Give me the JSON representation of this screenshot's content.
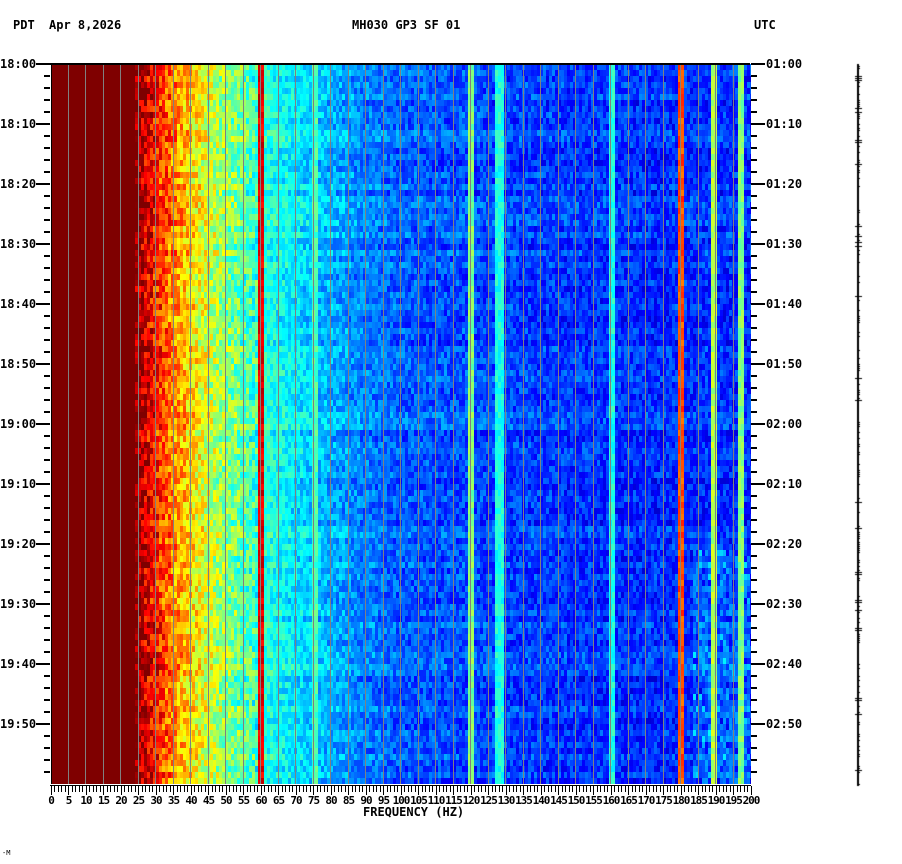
{
  "header": {
    "left_tz": "PDT",
    "date": "Apr 8,2026",
    "station": "MH030 GP3 SF 01",
    "right_tz": "UTC"
  },
  "footer": {
    "corner_mark": "-M"
  },
  "colors": {
    "background": "#ffffff",
    "grid": "#808080",
    "axis": "#000000",
    "colormap": [
      "#00007f",
      "#0000ff",
      "#0080ff",
      "#00ffff",
      "#80ff80",
      "#ffff00",
      "#ff8000",
      "#ff0000",
      "#7f0000"
    ]
  },
  "chart_data": {
    "type": "heatmap",
    "title": "MH030 GP3 SF 01",
    "subtitle": "Apr 8,2026",
    "xlabel": "FREQUENCY (HZ)",
    "ylabel_left": "PDT",
    "ylabel_right": "UTC",
    "xlim": [
      0,
      200
    ],
    "x_ticks": [
      0,
      5,
      10,
      15,
      20,
      25,
      30,
      35,
      40,
      45,
      50,
      55,
      60,
      65,
      70,
      75,
      80,
      85,
      90,
      95,
      100,
      105,
      110,
      115,
      120,
      125,
      130,
      135,
      140,
      145,
      150,
      155,
      160,
      165,
      170,
      175,
      180,
      185,
      190,
      195,
      200
    ],
    "y_ticks_left": [
      "18:00",
      "18:10",
      "18:20",
      "18:30",
      "18:40",
      "18:50",
      "19:00",
      "19:10",
      "19:20",
      "19:30",
      "19:40",
      "19:50"
    ],
    "y_ticks_right": [
      "01:00",
      "01:10",
      "01:20",
      "01:30",
      "01:40",
      "01:50",
      "02:00",
      "02:10",
      "02:20",
      "02:30",
      "02:40",
      "02:50"
    ],
    "time_range_pdt": [
      "18:00",
      "20:00"
    ],
    "time_range_utc": [
      "01:00",
      "03:00"
    ],
    "minor_tick_interval_min": 2,
    "grid": true,
    "grid_interval_hz": 5,
    "intensity_profile": {
      "description": "Relative spectral power (0=low/blue, 1=saturated/dark red) vs frequency",
      "freq_hz": [
        0,
        24,
        27,
        30,
        35,
        40,
        45,
        50,
        55,
        60,
        65,
        70,
        80,
        90,
        100,
        120,
        150,
        175,
        200
      ],
      "level": [
        1.0,
        1.0,
        0.92,
        0.85,
        0.75,
        0.66,
        0.58,
        0.52,
        0.47,
        0.42,
        0.39,
        0.36,
        0.3,
        0.25,
        0.22,
        0.2,
        0.18,
        0.17,
        0.17
      ]
    },
    "spectral_lines_hz": [
      {
        "freq": 60,
        "level": 0.95
      },
      {
        "freq": 75.5,
        "level": 0.5
      },
      {
        "freq": 120,
        "level": 0.55
      },
      {
        "freq": 128,
        "level": 0.45
      },
      {
        "freq": 160,
        "level": 0.45
      },
      {
        "freq": 180,
        "level": 0.85
      },
      {
        "freq": 189,
        "level": 0.6
      },
      {
        "freq": 197,
        "level": 0.55
      }
    ]
  }
}
